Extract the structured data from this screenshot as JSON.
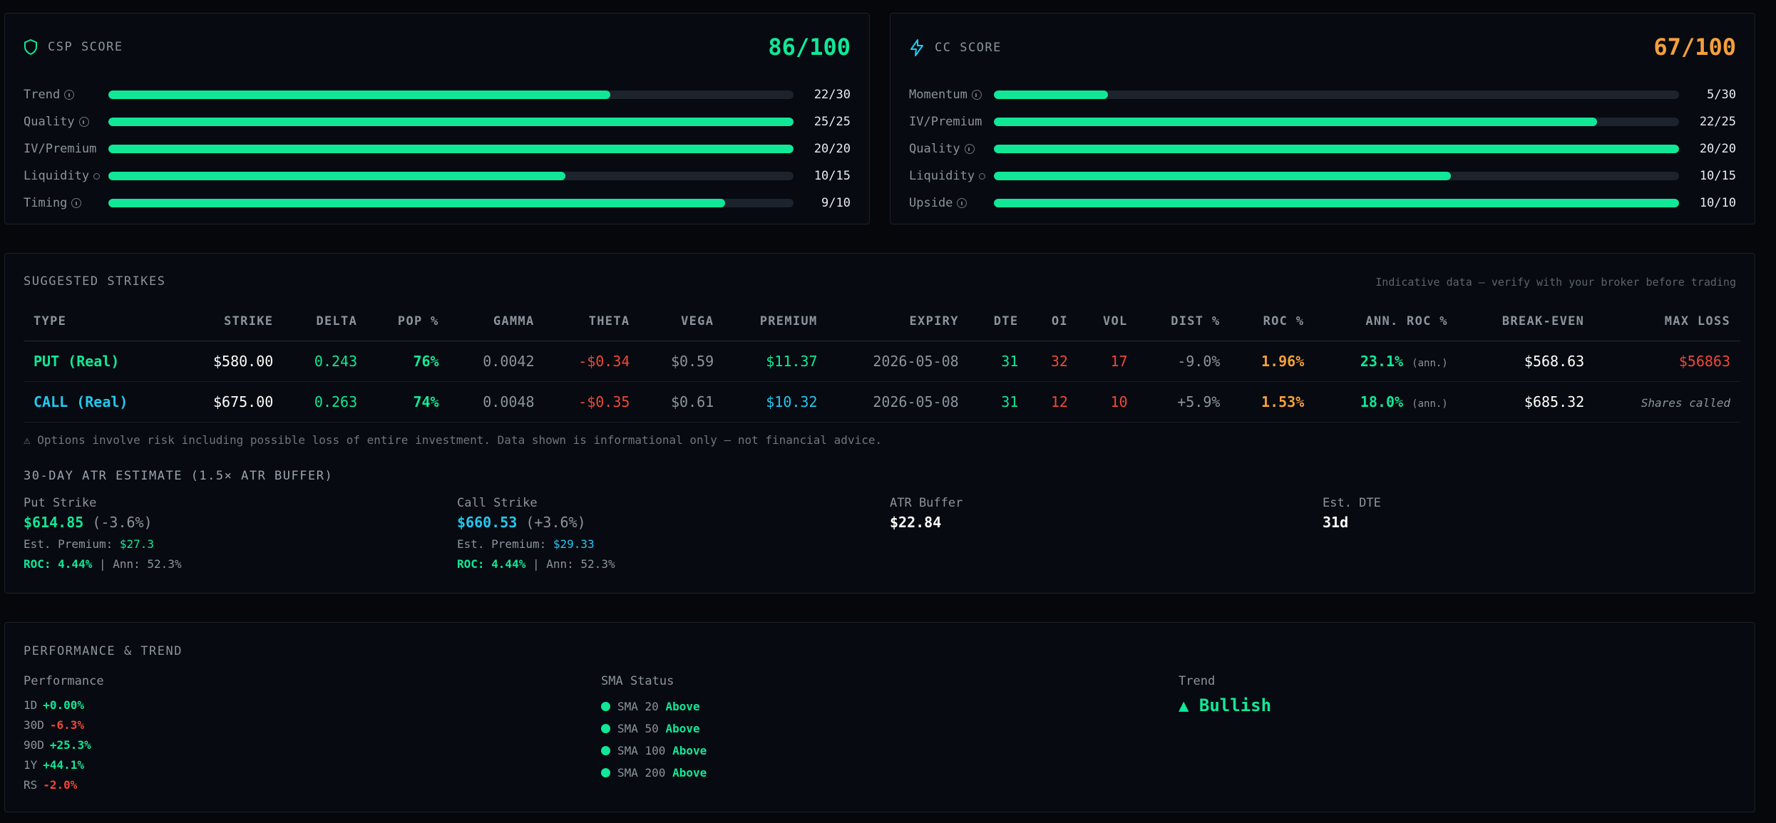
{
  "csp": {
    "title": "CSP SCORE",
    "score": "86/100",
    "score_color": "#10e898",
    "metrics": [
      {
        "label": "Trend",
        "score": "22/30",
        "fill": 0.733
      },
      {
        "label": "Quality",
        "score": "25/25",
        "fill": 1.0
      },
      {
        "label": "IV/Premium",
        "score": "20/20",
        "fill": 1.0
      },
      {
        "label": "Liquidity",
        "score": "10/15",
        "fill": 0.667
      },
      {
        "label": "Timing",
        "score": "9/10",
        "fill": 0.9
      }
    ]
  },
  "cc": {
    "title": "CC SCORE",
    "score": "67/100",
    "score_color": "#f5a03c",
    "metrics": [
      {
        "label": "Momentum",
        "score": "5/30",
        "fill": 0.167
      },
      {
        "label": "IV/Premium",
        "score": "22/25",
        "fill": 0.88
      },
      {
        "label": "Quality",
        "score": "20/20",
        "fill": 1.0
      },
      {
        "label": "Liquidity",
        "score": "10/15",
        "fill": 0.667
      },
      {
        "label": "Upside",
        "score": "10/10",
        "fill": 1.0
      }
    ]
  },
  "strikes": {
    "title": "SUGGESTED STRIKES",
    "notice": "Indicative data — verify with your broker before trading",
    "headers": [
      "TYPE",
      "STRIKE",
      "DELTA",
      "POP %",
      "GAMMA",
      "THETA",
      "VEGA",
      "PREMIUM",
      "EXPIRY",
      "DTE",
      "OI",
      "VOL",
      "DIST %",
      "ROC %",
      "ANN. ROC %",
      "BREAK-EVEN",
      "MAX LOSS"
    ],
    "rows": [
      {
        "type": "PUT (Real)",
        "strike": "$580.00",
        "delta": "0.243",
        "pop": "76%",
        "gamma": "0.0042",
        "theta": "-$0.34",
        "vega": "$0.59",
        "premium": "$11.37",
        "expiry": "2026-05-08",
        "dte": "31",
        "oi": "32",
        "vol": "17",
        "dist": "-9.0%",
        "roc": "1.96%",
        "ann_roc": "23.1%",
        "ann_tag": "(ann.)",
        "break_even": "$568.63",
        "max_loss": "$56863"
      },
      {
        "type": "CALL (Real)",
        "strike": "$675.00",
        "delta": "0.263",
        "pop": "74%",
        "gamma": "0.0048",
        "theta": "-$0.35",
        "vega": "$0.61",
        "premium": "$10.32",
        "expiry": "2026-05-08",
        "dte": "31",
        "oi": "12",
        "vol": "10",
        "dist": "+5.9%",
        "roc": "1.53%",
        "ann_roc": "18.0%",
        "ann_tag": "(ann.)",
        "break_even": "$685.32",
        "max_loss": "Shares called"
      }
    ],
    "disclaimer": "⚠ Options involve risk including possible loss of entire investment. Data shown is informational only — not financial advice."
  },
  "atr": {
    "title": "30-DAY ATR ESTIMATE (1.5× ATR BUFFER)",
    "put": {
      "label": "Put Strike",
      "price": "$614.85",
      "pct": "(-3.6%)",
      "premium_label": "Est. Premium:",
      "premium": "$27.3",
      "roc": "ROC: 4.44%",
      "sep": "|",
      "ann": "Ann: 52.3%"
    },
    "call": {
      "label": "Call Strike",
      "price": "$660.53",
      "pct": "(+3.6%)",
      "premium_label": "Est. Premium:",
      "premium": "$29.33",
      "roc": "ROC: 4.44%",
      "sep": "|",
      "ann": "Ann: 52.3%"
    },
    "buffer": {
      "label": "ATR Buffer",
      "value": "$22.84"
    },
    "dte": {
      "label": "Est. DTE",
      "value": "31d"
    }
  },
  "performance": {
    "title": "PERFORMANCE & TREND",
    "perf_label": "Performance",
    "perf": [
      {
        "period": "1D",
        "value": "+0.00%",
        "color": "#10e898"
      },
      {
        "period": "30D",
        "value": "-6.3%",
        "color": "#f0473a"
      },
      {
        "period": "90D",
        "value": "+25.3%",
        "color": "#10e898"
      },
      {
        "period": "1Y",
        "value": "+44.1%",
        "color": "#10e898"
      },
      {
        "period": "RS",
        "value": "-2.0%",
        "color": "#f0473a"
      }
    ],
    "sma_label": "SMA Status",
    "sma": [
      {
        "name": "SMA 20",
        "status": "Above"
      },
      {
        "name": "SMA 50",
        "status": "Above"
      },
      {
        "name": "SMA 100",
        "status": "Above"
      },
      {
        "name": "SMA 200",
        "status": "Above"
      }
    ],
    "trend_label": "Trend",
    "trend": "▲ Bullish"
  }
}
